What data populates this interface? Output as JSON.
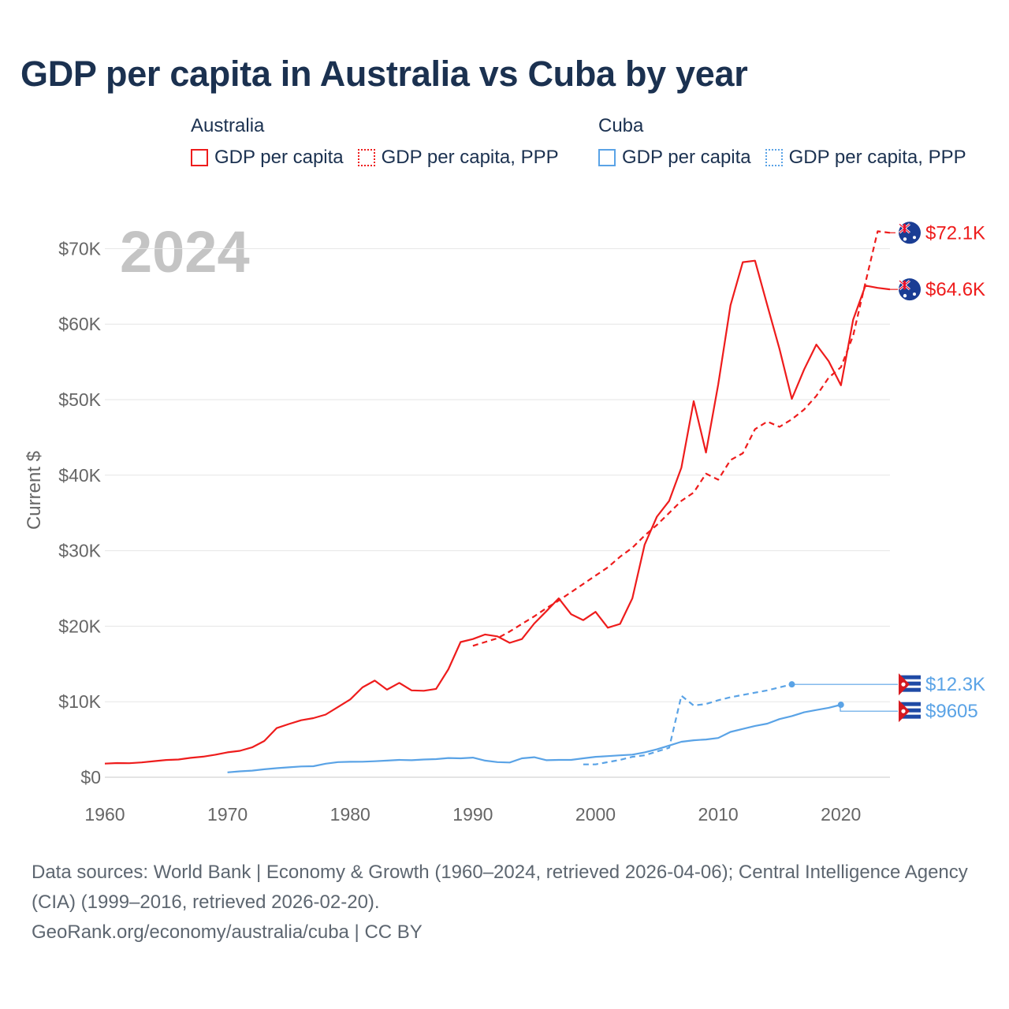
{
  "title": "GDP per capita in Australia vs Cuba by year",
  "legend": {
    "groups": [
      {
        "name": "Australia",
        "items": [
          {
            "label": "GDP per capita",
            "style": "solid",
            "color": "#ee1c1c"
          },
          {
            "label": "GDP per capita, PPP",
            "style": "dotted",
            "color": "#ee1c1c"
          }
        ]
      },
      {
        "name": "Cuba",
        "items": [
          {
            "label": "GDP per capita",
            "style": "solid",
            "color": "#5aa3e6"
          },
          {
            "label": "GDP per capita, PPP",
            "style": "dotted",
            "color": "#5aa3e6"
          }
        ]
      }
    ]
  },
  "year_watermark": "2024",
  "chart_data": {
    "type": "line",
    "title": "GDP per capita in Australia vs Cuba by year",
    "xlabel": "",
    "ylabel": "Current $",
    "xlim": [
      1960,
      2024
    ],
    "ylim": [
      0,
      72000
    ],
    "x_ticks": [
      1960,
      1970,
      1980,
      1990,
      2000,
      2010,
      2020
    ],
    "y_ticks": [
      {
        "value": 0,
        "label": "$0"
      },
      {
        "value": 10000,
        "label": "$10K"
      },
      {
        "value": 20000,
        "label": "$20K"
      },
      {
        "value": 30000,
        "label": "$30K"
      },
      {
        "value": 40000,
        "label": "$40K"
      },
      {
        "value": 50000,
        "label": "$50K"
      },
      {
        "value": 60000,
        "label": "$60K"
      },
      {
        "value": 70000,
        "label": "$70K"
      }
    ],
    "grid": true,
    "series": [
      {
        "name": "Australia GDP per capita",
        "color": "#ee1c1c",
        "dash": false,
        "end_label": "$64.6K",
        "end_flag": "australia",
        "x": [
          1960,
          1961,
          1962,
          1963,
          1964,
          1965,
          1966,
          1967,
          1968,
          1969,
          1970,
          1971,
          1972,
          1973,
          1974,
          1975,
          1976,
          1977,
          1978,
          1979,
          1980,
          1981,
          1982,
          1983,
          1984,
          1985,
          1986,
          1987,
          1988,
          1989,
          1990,
          1991,
          1992,
          1993,
          1994,
          1995,
          1996,
          1997,
          1998,
          1999,
          2000,
          2001,
          2002,
          2003,
          2004,
          2005,
          2006,
          2007,
          2008,
          2009,
          2010,
          2011,
          2012,
          2013,
          2014,
          2015,
          2016,
          2017,
          2018,
          2019,
          2020,
          2021,
          2022,
          2023,
          2024
        ],
        "values": [
          1810,
          1880,
          1860,
          1960,
          2130,
          2290,
          2350,
          2570,
          2720,
          2990,
          3300,
          3500,
          3960,
          4800,
          6500,
          7050,
          7550,
          7830,
          8300,
          9300,
          10300,
          11900,
          12800,
          11600,
          12500,
          11500,
          11450,
          11700,
          14300,
          17900,
          18300,
          18900,
          18650,
          17800,
          18300,
          20350,
          22000,
          23700,
          21600,
          20800,
          21900,
          19800,
          20300,
          23700,
          30800,
          34500,
          36600,
          41000,
          49800,
          43000,
          52000,
          62500,
          68200,
          68400,
          62500,
          56700,
          50100,
          54000,
          57300,
          55100,
          51900,
          60600,
          65100,
          64800,
          64600
        ]
      },
      {
        "name": "Australia GDP per capita, PPP",
        "color": "#ee1c1c",
        "dash": true,
        "end_label": "$72.1K",
        "end_flag": "australia",
        "x": [
          1990,
          1991,
          1992,
          1993,
          1994,
          1995,
          1996,
          1997,
          1998,
          1999,
          2000,
          2001,
          2002,
          2003,
          2004,
          2005,
          2006,
          2007,
          2008,
          2009,
          2010,
          2011,
          2012,
          2013,
          2014,
          2015,
          2016,
          2017,
          2018,
          2019,
          2020,
          2021,
          2022,
          2023,
          2024
        ],
        "values": [
          17400,
          17900,
          18400,
          19300,
          20300,
          21300,
          22400,
          23400,
          24500,
          25600,
          26700,
          27800,
          29200,
          30400,
          32000,
          33400,
          35000,
          36600,
          37700,
          40200,
          39400,
          42000,
          42900,
          46100,
          47100,
          46400,
          47400,
          48700,
          50500,
          52900,
          54300,
          58500,
          65500,
          72300,
          72100
        ]
      },
      {
        "name": "Cuba GDP per capita",
        "color": "#5aa3e6",
        "dash": false,
        "end_label": "$9605",
        "end_flag": "cuba",
        "x": [
          1970,
          1971,
          1972,
          1973,
          1974,
          1975,
          1976,
          1977,
          1978,
          1979,
          1980,
          1981,
          1982,
          1983,
          1984,
          1985,
          1986,
          1987,
          1988,
          1989,
          1990,
          1991,
          1992,
          1993,
          1994,
          1995,
          1996,
          1997,
          1998,
          1999,
          2000,
          2001,
          2002,
          2003,
          2004,
          2005,
          2006,
          2007,
          2008,
          2009,
          2010,
          2011,
          2012,
          2013,
          2014,
          2015,
          2016,
          2017,
          2018,
          2019,
          2020
        ],
        "values": [
          650,
          780,
          880,
          1050,
          1200,
          1320,
          1430,
          1460,
          1800,
          2000,
          2050,
          2060,
          2120,
          2200,
          2300,
          2250,
          2350,
          2400,
          2550,
          2500,
          2600,
          2200,
          2000,
          1950,
          2500,
          2650,
          2250,
          2300,
          2300,
          2500,
          2700,
          2800,
          2900,
          3000,
          3300,
          3700,
          4200,
          4700,
          4900,
          5000,
          5200,
          6000,
          6400,
          6800,
          7100,
          7700,
          8100,
          8600,
          8900,
          9200,
          9600
        ]
      },
      {
        "name": "Cuba GDP per capita, PPP",
        "color": "#5aa3e6",
        "dash": true,
        "end_label": "$12.3K",
        "end_flag": "cuba",
        "x": [
          1999,
          2000,
          2001,
          2002,
          2003,
          2004,
          2005,
          2006,
          2007,
          2008,
          2009,
          2010,
          2011,
          2012,
          2013,
          2014,
          2015,
          2016
        ],
        "values": [
          1700,
          1700,
          2000,
          2300,
          2700,
          2900,
          3400,
          3900,
          10800,
          9500,
          9700,
          10200,
          10600,
          10900,
          11200,
          11500,
          11900,
          12300
        ]
      }
    ]
  },
  "footer": {
    "sources": "Data sources: World Bank | Economy & Growth (1960–2024, retrieved 2026-04-06); Central Intelligence Agency (CIA) (1999–2016, retrieved 2026-02-20).",
    "credit": "GeoRank.org/economy/australia/cuba | CC BY"
  }
}
